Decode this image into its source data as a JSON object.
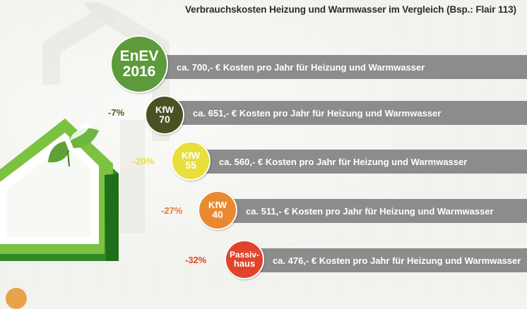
{
  "chart_data": {
    "type": "bar",
    "title": "Verbrauchskosten Heizung und Warmwasser im Vergleich (Bsp.: Flair 113)",
    "unit": "€ pro Jahr",
    "categories": [
      [
        "EnEV",
        "2016"
      ],
      [
        "KfW",
        "70"
      ],
      [
        "KfW",
        "55"
      ],
      [
        "KfW",
        "40"
      ],
      [
        "Passiv-",
        "haus"
      ]
    ],
    "values": [
      700,
      651,
      560,
      511,
      476
    ],
    "labels": [
      "ca. 700,- € Kosten pro Jahr für Heizung und Warmwasser",
      "ca. 651,- € Kosten pro Jahr für Heizung und Warmwasser",
      "ca. 560,- € Kosten pro Jahr für Heizung und Warmwasser",
      "ca. 511,- € Kosten pro Jahr für Heizung und Warmwasser",
      "ca. 476,- € Kosten pro Jahr für Heizung und Warmwasser"
    ],
    "changes": [
      "",
      "-7%",
      "-20%",
      "-27%",
      "-32%"
    ],
    "badge_colors": [
      "#5c9a3c",
      "#4b5122",
      "#e9df3a",
      "#e98a30",
      "#e0452c"
    ],
    "change_colors": [
      "",
      "#4f5a26",
      "#e9df3a",
      "#e07a2a",
      "#d9472c"
    ],
    "bar_color": "#8c8c8c"
  }
}
